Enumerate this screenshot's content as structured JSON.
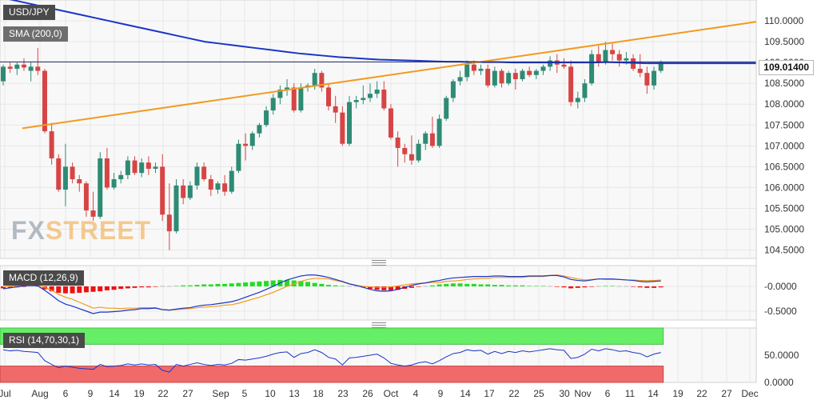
{
  "symbol_label": "USD/JPY",
  "sma_label": "SMA (200,0)",
  "macd_label": "MACD (12,26,9)",
  "rsi_label": "RSI (14,70,30,1)",
  "current_price": "109.01400",
  "watermark": {
    "fx": "FX",
    "street": "STREET"
  },
  "colors": {
    "bull": "#2e8b74",
    "bear": "#d64545",
    "sma": "#1a35c8",
    "trend": "#f39a1e",
    "macd_line": "#1a35c8",
    "signal_line": "#f39a1e",
    "hist_up": "#22dd22",
    "hist_down": "#ee1111",
    "rsi_line": "#1a35c8",
    "rsi_overbought": "#66ee66",
    "rsi_oversold": "#f06a6a"
  },
  "chart_data": [
    {
      "type": "candlestick",
      "title": "USD/JPY",
      "ylim": [
        104.3,
        110.5
      ],
      "y_ticks": [
        "110.0000",
        "109.5000",
        "109.0000",
        "108.5000",
        "108.0000",
        "107.5000",
        "107.0000",
        "106.5000",
        "106.0000",
        "105.5000",
        "105.0000",
        "104.5000"
      ],
      "x_ticks": [
        "Jul",
        "Aug",
        "6",
        "9",
        "14",
        "19",
        "22",
        "27",
        "Sep",
        "5",
        "10",
        "13",
        "18",
        "23",
        "26",
        "Oct",
        "4",
        "9",
        "14",
        "17",
        "22",
        "25",
        "30",
        "Nov",
        "6",
        "11",
        "14",
        "19",
        "22",
        "27",
        "Dec"
      ],
      "candles": [
        {
          "o": 108.55,
          "h": 108.95,
          "l": 108.45,
          "c": 108.9
        },
        {
          "o": 108.9,
          "h": 109.0,
          "l": 108.75,
          "c": 108.85
        },
        {
          "o": 108.85,
          "h": 109.0,
          "l": 108.7,
          "c": 108.95
        },
        {
          "o": 108.95,
          "h": 109.1,
          "l": 108.8,
          "c": 108.88
        },
        {
          "o": 108.8,
          "h": 109.0,
          "l": 108.55,
          "c": 108.9
        },
        {
          "o": 108.9,
          "h": 109.35,
          "l": 108.7,
          "c": 108.8
        },
        {
          "o": 108.8,
          "h": 108.85,
          "l": 107.3,
          "c": 107.35
        },
        {
          "o": 107.35,
          "h": 107.55,
          "l": 106.55,
          "c": 106.7
        },
        {
          "o": 106.7,
          "h": 106.8,
          "l": 105.9,
          "c": 105.95
        },
        {
          "o": 105.95,
          "h": 107.05,
          "l": 105.55,
          "c": 106.5
        },
        {
          "o": 106.5,
          "h": 106.6,
          "l": 106.1,
          "c": 106.2
        },
        {
          "o": 106.2,
          "h": 106.3,
          "l": 105.9,
          "c": 106.1
        },
        {
          "o": 106.1,
          "h": 106.15,
          "l": 105.3,
          "c": 105.45
        },
        {
          "o": 105.45,
          "h": 105.9,
          "l": 105.2,
          "c": 105.3
        },
        {
          "o": 105.3,
          "h": 106.85,
          "l": 105.25,
          "c": 106.7
        },
        {
          "o": 106.7,
          "h": 106.95,
          "l": 105.95,
          "c": 106.0
        },
        {
          "o": 106.0,
          "h": 106.35,
          "l": 105.95,
          "c": 106.2
        },
        {
          "o": 106.2,
          "h": 106.4,
          "l": 106.1,
          "c": 106.3
        },
        {
          "o": 106.3,
          "h": 106.75,
          "l": 106.2,
          "c": 106.65
        },
        {
          "o": 106.65,
          "h": 106.75,
          "l": 106.3,
          "c": 106.35
        },
        {
          "o": 106.35,
          "h": 106.7,
          "l": 106.25,
          "c": 106.6
        },
        {
          "o": 106.6,
          "h": 106.75,
          "l": 106.3,
          "c": 106.45
        },
        {
          "o": 106.45,
          "h": 106.6,
          "l": 106.35,
          "c": 106.5
        },
        {
          "o": 106.5,
          "h": 106.8,
          "l": 105.2,
          "c": 105.35
        },
        {
          "o": 105.35,
          "h": 106.1,
          "l": 104.5,
          "c": 104.95
        },
        {
          "o": 104.95,
          "h": 106.2,
          "l": 104.9,
          "c": 106.05
        },
        {
          "o": 106.05,
          "h": 106.2,
          "l": 105.6,
          "c": 105.75
        },
        {
          "o": 105.75,
          "h": 106.15,
          "l": 105.7,
          "c": 106.05
        },
        {
          "o": 106.05,
          "h": 106.6,
          "l": 105.95,
          "c": 106.5
        },
        {
          "o": 106.5,
          "h": 106.6,
          "l": 106.15,
          "c": 106.2
        },
        {
          "o": 106.2,
          "h": 106.3,
          "l": 105.8,
          "c": 105.95
        },
        {
          "o": 105.95,
          "h": 106.15,
          "l": 105.85,
          "c": 106.1
        },
        {
          "o": 106.1,
          "h": 106.3,
          "l": 105.8,
          "c": 105.9
        },
        {
          "o": 105.9,
          "h": 106.5,
          "l": 105.85,
          "c": 106.4
        },
        {
          "o": 106.4,
          "h": 107.15,
          "l": 106.35,
          "c": 107.05
        },
        {
          "o": 107.05,
          "h": 107.3,
          "l": 106.65,
          "c": 107.0
        },
        {
          "o": 107.0,
          "h": 107.35,
          "l": 106.9,
          "c": 107.3
        },
        {
          "o": 107.3,
          "h": 107.55,
          "l": 107.2,
          "c": 107.5
        },
        {
          "o": 107.5,
          "h": 107.95,
          "l": 107.45,
          "c": 107.85
        },
        {
          "o": 107.85,
          "h": 108.25,
          "l": 107.75,
          "c": 108.15
        },
        {
          "o": 108.15,
          "h": 108.45,
          "l": 108.0,
          "c": 108.35
        },
        {
          "o": 108.35,
          "h": 108.6,
          "l": 108.2,
          "c": 108.4
        },
        {
          "o": 108.4,
          "h": 108.5,
          "l": 107.8,
          "c": 107.85
        },
        {
          "o": 107.85,
          "h": 108.5,
          "l": 107.8,
          "c": 108.4
        },
        {
          "o": 108.4,
          "h": 108.5,
          "l": 108.3,
          "c": 108.45
        },
        {
          "o": 108.45,
          "h": 108.85,
          "l": 108.35,
          "c": 108.75
        },
        {
          "o": 108.75,
          "h": 108.8,
          "l": 108.3,
          "c": 108.4
        },
        {
          "o": 108.4,
          "h": 108.5,
          "l": 107.85,
          "c": 107.95
        },
        {
          "o": 107.95,
          "h": 108.2,
          "l": 107.55,
          "c": 107.8
        },
        {
          "o": 107.8,
          "h": 107.95,
          "l": 107.0,
          "c": 107.05
        },
        {
          "o": 107.05,
          "h": 108.2,
          "l": 107.0,
          "c": 108.05
        },
        {
          "o": 108.05,
          "h": 108.2,
          "l": 107.9,
          "c": 108.1
        },
        {
          "o": 108.1,
          "h": 108.45,
          "l": 108.0,
          "c": 108.15
        },
        {
          "o": 108.15,
          "h": 108.5,
          "l": 108.05,
          "c": 108.25
        },
        {
          "o": 108.25,
          "h": 108.55,
          "l": 108.15,
          "c": 108.35
        },
        {
          "o": 108.35,
          "h": 108.55,
          "l": 107.85,
          "c": 107.9
        },
        {
          "o": 107.9,
          "h": 108.0,
          "l": 107.15,
          "c": 107.2
        },
        {
          "o": 107.2,
          "h": 107.35,
          "l": 106.5,
          "c": 106.95
        },
        {
          "o": 106.95,
          "h": 107.05,
          "l": 106.6,
          "c": 106.8
        },
        {
          "o": 106.8,
          "h": 107.25,
          "l": 106.55,
          "c": 106.65
        },
        {
          "o": 106.65,
          "h": 107.15,
          "l": 106.6,
          "c": 107.05
        },
        {
          "o": 107.05,
          "h": 107.35,
          "l": 106.9,
          "c": 107.3
        },
        {
          "o": 107.3,
          "h": 107.7,
          "l": 106.95,
          "c": 107.0
        },
        {
          "o": 107.0,
          "h": 107.75,
          "l": 106.95,
          "c": 107.65
        },
        {
          "o": 107.65,
          "h": 108.2,
          "l": 107.6,
          "c": 108.15
        },
        {
          "o": 108.15,
          "h": 108.6,
          "l": 108.05,
          "c": 108.55
        },
        {
          "o": 108.55,
          "h": 108.8,
          "l": 108.45,
          "c": 108.65
        },
        {
          "o": 108.65,
          "h": 109.05,
          "l": 108.55,
          "c": 108.95
        },
        {
          "o": 108.95,
          "h": 109.05,
          "l": 108.7,
          "c": 108.8
        },
        {
          "o": 108.8,
          "h": 108.95,
          "l": 108.7,
          "c": 108.85
        },
        {
          "o": 108.85,
          "h": 108.95,
          "l": 108.4,
          "c": 108.45
        },
        {
          "o": 108.45,
          "h": 108.9,
          "l": 108.4,
          "c": 108.8
        },
        {
          "o": 108.8,
          "h": 108.85,
          "l": 108.4,
          "c": 108.5
        },
        {
          "o": 108.5,
          "h": 108.8,
          "l": 108.45,
          "c": 108.75
        },
        {
          "o": 108.75,
          "h": 108.85,
          "l": 108.35,
          "c": 108.6
        },
        {
          "o": 108.6,
          "h": 108.85,
          "l": 108.55,
          "c": 108.8
        },
        {
          "o": 108.8,
          "h": 108.9,
          "l": 108.65,
          "c": 108.7
        },
        {
          "o": 108.7,
          "h": 108.85,
          "l": 108.6,
          "c": 108.8
        },
        {
          "o": 108.8,
          "h": 108.95,
          "l": 108.7,
          "c": 108.9
        },
        {
          "o": 108.9,
          "h": 109.15,
          "l": 108.8,
          "c": 109.05
        },
        {
          "o": 109.05,
          "h": 109.2,
          "l": 108.75,
          "c": 108.95
        },
        {
          "o": 108.95,
          "h": 109.1,
          "l": 108.85,
          "c": 108.9
        },
        {
          "o": 108.9,
          "h": 109.05,
          "l": 107.95,
          "c": 108.05
        },
        {
          "o": 108.05,
          "h": 108.3,
          "l": 107.9,
          "c": 108.15
        },
        {
          "o": 108.15,
          "h": 108.6,
          "l": 108.05,
          "c": 108.5
        },
        {
          "o": 108.5,
          "h": 109.3,
          "l": 108.45,
          "c": 109.2
        },
        {
          "o": 109.2,
          "h": 109.4,
          "l": 108.9,
          "c": 109.0
        },
        {
          "o": 109.0,
          "h": 109.5,
          "l": 108.95,
          "c": 109.3
        },
        {
          "o": 109.3,
          "h": 109.45,
          "l": 109.05,
          "c": 109.2
        },
        {
          "o": 109.2,
          "h": 109.3,
          "l": 108.9,
          "c": 109.05
        },
        {
          "o": 109.05,
          "h": 109.25,
          "l": 108.95,
          "c": 109.1
        },
        {
          "o": 109.1,
          "h": 109.2,
          "l": 108.8,
          "c": 108.85
        },
        {
          "o": 108.85,
          "h": 109.2,
          "l": 108.65,
          "c": 108.75
        },
        {
          "o": 108.75,
          "h": 108.9,
          "l": 108.25,
          "c": 108.45
        },
        {
          "o": 108.45,
          "h": 108.9,
          "l": 108.35,
          "c": 108.8
        },
        {
          "o": 108.8,
          "h": 109.05,
          "l": 108.75,
          "c": 109.0
        }
      ],
      "sma200": [
        110.55,
        110.48,
        110.41,
        110.34,
        110.27,
        110.2,
        110.13,
        110.06,
        109.99,
        109.92,
        109.85,
        109.78,
        109.71,
        109.64,
        109.57,
        109.5,
        109.46,
        109.42,
        109.38,
        109.34,
        109.3,
        109.26,
        109.22,
        109.19,
        109.16,
        109.13,
        109.11,
        109.09,
        109.07,
        109.06,
        109.05,
        109.04,
        109.03,
        109.02,
        109.02,
        109.01,
        109.01,
        109.01,
        109.0,
        109.0,
        109.0,
        109.0,
        109.0,
        109.0,
        109.0,
        109.01,
        109.0,
        108.99,
        108.98,
        108.98
      ],
      "trendline": {
        "from": {
          "bar": 6,
          "y": 107.5
        },
        "to": {
          "bar": 94,
          "y": 109.62
        }
      },
      "current_price": 109.014
    },
    {
      "type": "histogram+lines",
      "title": "MACD (12,26,9)",
      "ylim": [
        -0.68,
        0.42
      ],
      "y_ticks": [
        "-0.0000",
        "-0.5000"
      ],
      "histogram": [
        -0.04,
        -0.03,
        -0.02,
        -0.01,
        0.0,
        0.0,
        -0.06,
        -0.1,
        -0.13,
        -0.14,
        -0.14,
        -0.13,
        -0.12,
        -0.11,
        -0.1,
        -0.08,
        -0.07,
        -0.05,
        -0.04,
        -0.03,
        -0.02,
        -0.02,
        -0.01,
        0.0,
        0.0,
        0.01,
        0.02,
        0.02,
        0.03,
        0.04,
        0.04,
        0.05,
        0.05,
        0.06,
        0.07,
        0.08,
        0.09,
        0.1,
        0.11,
        0.12,
        0.13,
        0.13,
        0.12,
        0.11,
        0.09,
        0.07,
        0.05,
        0.03,
        0.02,
        0.01,
        0.0,
        0.0,
        -0.02,
        -0.05,
        -0.07,
        -0.08,
        -0.08,
        -0.07,
        -0.05,
        -0.03,
        -0.01,
        0.0,
        0.02,
        0.04,
        0.05,
        0.06,
        0.06,
        0.05,
        0.05,
        0.04,
        0.04,
        0.03,
        0.03,
        0.02,
        0.02,
        0.02,
        0.01,
        0.01,
        0.01,
        0.0,
        -0.01,
        -0.02,
        -0.04,
        -0.03,
        -0.02,
        -0.01,
        0.0,
        0.01,
        0.01,
        0.0,
        0.0,
        -0.01,
        -0.02,
        -0.03,
        -0.03,
        -0.02
      ],
      "macd_line": [
        -0.05,
        -0.03,
        -0.01,
        0.01,
        0.02,
        0.01,
        -0.08,
        -0.18,
        -0.29,
        -0.36,
        -0.4,
        -0.45,
        -0.5,
        -0.55,
        -0.52,
        -0.52,
        -0.51,
        -0.5,
        -0.48,
        -0.47,
        -0.45,
        -0.45,
        -0.44,
        -0.47,
        -0.48,
        -0.46,
        -0.44,
        -0.43,
        -0.4,
        -0.38,
        -0.37,
        -0.35,
        -0.33,
        -0.31,
        -0.27,
        -0.22,
        -0.17,
        -0.12,
        -0.06,
        0.0,
        0.07,
        0.13,
        0.17,
        0.21,
        0.23,
        0.23,
        0.21,
        0.18,
        0.14,
        0.1,
        0.05,
        0.02,
        -0.02,
        -0.06,
        -0.09,
        -0.1,
        -0.09,
        -0.06,
        -0.02,
        0.02,
        0.05,
        0.07,
        0.1,
        0.12,
        0.15,
        0.17,
        0.18,
        0.19,
        0.2,
        0.2,
        0.2,
        0.21,
        0.21,
        0.2,
        0.2,
        0.2,
        0.21,
        0.21,
        0.21,
        0.22,
        0.22,
        0.19,
        0.14,
        0.12,
        0.11,
        0.13,
        0.15,
        0.15,
        0.15,
        0.14,
        0.13,
        0.12,
        0.1,
        0.09,
        0.1,
        0.11
      ],
      "signal_line": [
        -0.01,
        0.0,
        0.01,
        0.02,
        0.02,
        0.01,
        -0.02,
        -0.08,
        -0.16,
        -0.22,
        -0.26,
        -0.32,
        -0.38,
        -0.44,
        -0.42,
        -0.44,
        -0.44,
        -0.45,
        -0.44,
        -0.44,
        -0.43,
        -0.43,
        -0.43,
        -0.47,
        -0.48,
        -0.47,
        -0.46,
        -0.45,
        -0.43,
        -0.42,
        -0.41,
        -0.4,
        -0.38,
        -0.37,
        -0.34,
        -0.3,
        -0.26,
        -0.22,
        -0.17,
        -0.12,
        -0.06,
        0.0,
        0.05,
        0.1,
        0.14,
        0.16,
        0.16,
        0.15,
        0.12,
        0.09,
        0.05,
        0.02,
        0.0,
        -0.01,
        -0.02,
        -0.02,
        -0.01,
        0.01,
        0.03,
        0.05,
        0.06,
        0.07,
        0.08,
        0.08,
        0.1,
        0.11,
        0.12,
        0.14,
        0.15,
        0.16,
        0.16,
        0.18,
        0.18,
        0.18,
        0.18,
        0.18,
        0.2,
        0.2,
        0.2,
        0.22,
        0.23,
        0.21,
        0.18,
        0.15,
        0.13,
        0.14,
        0.15,
        0.14,
        0.14,
        0.14,
        0.13,
        0.13,
        0.12,
        0.12,
        0.12,
        0.13
      ]
    },
    {
      "type": "line",
      "title": "RSI (14,70,30,1)",
      "ylim": [
        0,
        100
      ],
      "y_ticks": [
        "50.0000",
        "0.0000"
      ],
      "overbought": 70,
      "oversold": 30,
      "rsi": [
        60,
        58,
        59,
        57,
        56,
        55,
        40,
        33,
        27,
        30,
        28,
        26,
        25,
        24,
        33,
        29,
        30,
        31,
        34,
        32,
        34,
        32,
        33,
        22,
        19,
        33,
        30,
        33,
        36,
        33,
        31,
        33,
        32,
        35,
        42,
        41,
        43,
        45,
        48,
        52,
        55,
        56,
        46,
        53,
        55,
        60,
        55,
        46,
        43,
        32,
        45,
        46,
        48,
        50,
        52,
        45,
        35,
        32,
        30,
        32,
        36,
        38,
        34,
        40,
        47,
        53,
        55,
        60,
        58,
        59,
        52,
        57,
        53,
        57,
        55,
        58,
        56,
        58,
        60,
        62,
        60,
        59,
        44,
        46,
        52,
        61,
        58,
        62,
        60,
        57,
        58,
        55,
        53,
        47,
        52,
        55
      ]
    }
  ]
}
